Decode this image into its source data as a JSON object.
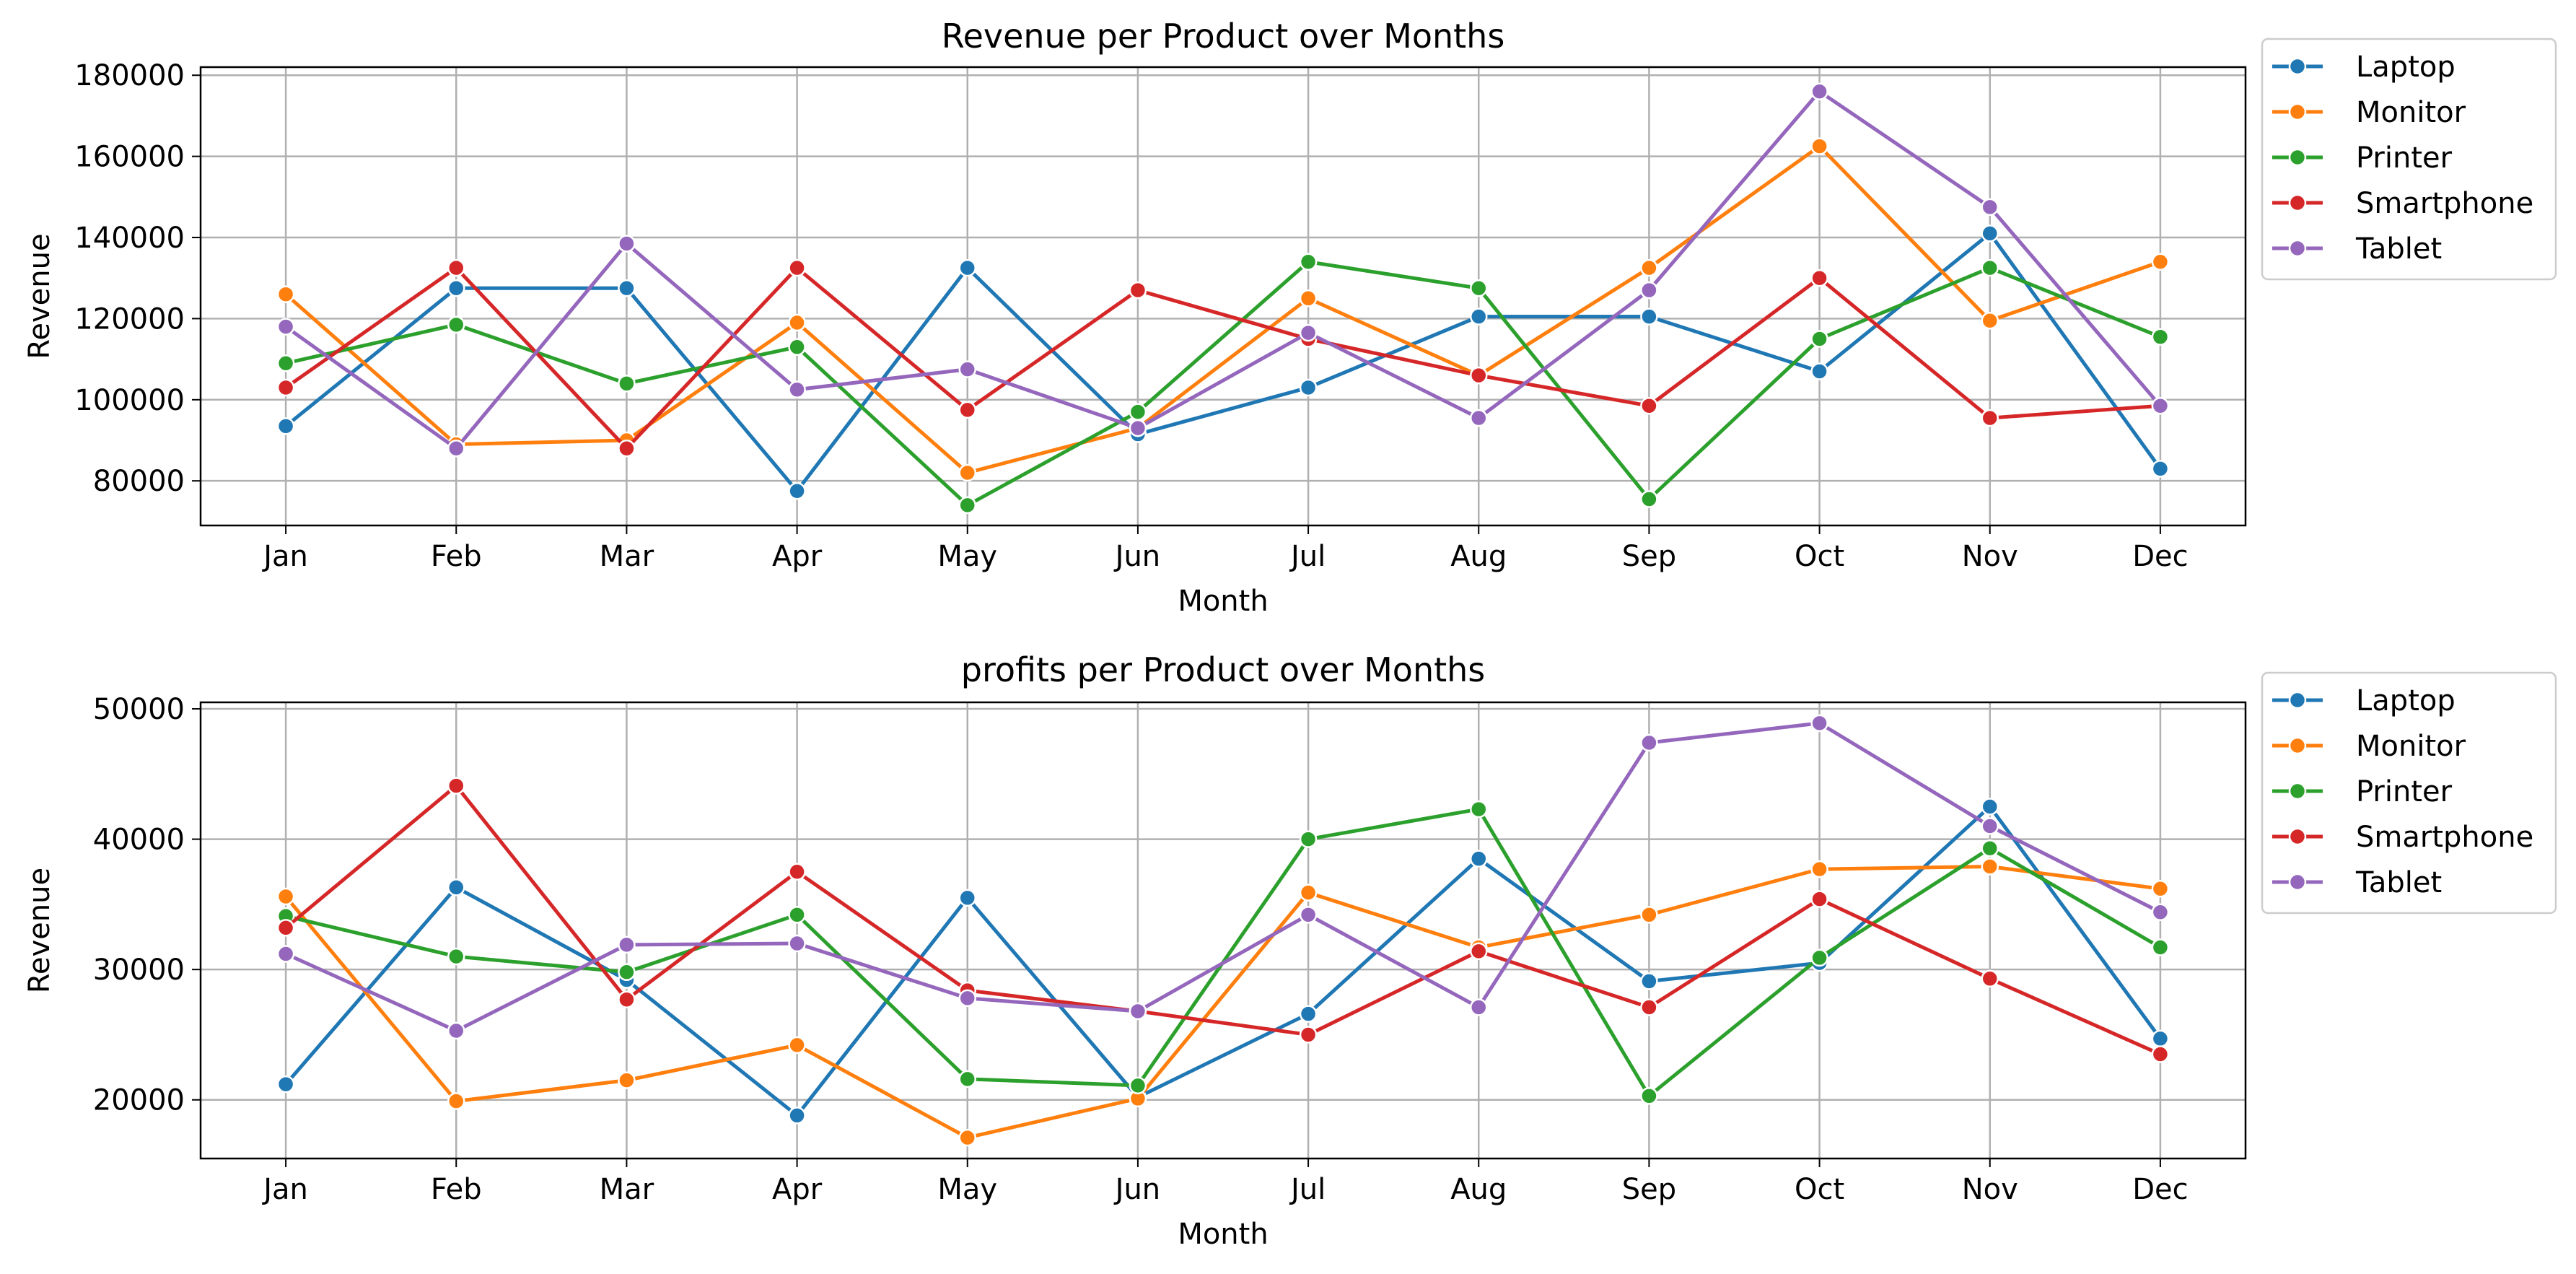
{
  "months": [
    "Jan",
    "Feb",
    "Mar",
    "Apr",
    "May",
    "Jun",
    "Jul",
    "Aug",
    "Sep",
    "Oct",
    "Nov",
    "Dec"
  ],
  "colors": {
    "Laptop": "#1f77b4",
    "Monitor": "#ff7f0e",
    "Printer": "#2ca02c",
    "Smartphone": "#d62728",
    "Tablet": "#9467bd"
  },
  "chart_data": [
    {
      "type": "line",
      "title": "Revenue per Product over Months",
      "xlabel": "Month",
      "ylabel": "Revenue",
      "ylim": [
        69000,
        182000
      ],
      "yticks": [
        80000,
        100000,
        120000,
        140000,
        160000,
        180000
      ],
      "grid": true,
      "legend": "outside-right",
      "categories": [
        "Jan",
        "Feb",
        "Mar",
        "Apr",
        "May",
        "Jun",
        "Jul",
        "Aug",
        "Sep",
        "Oct",
        "Nov",
        "Dec"
      ],
      "series": [
        {
          "name": "Laptop",
          "values": [
            93500,
            127500,
            127500,
            77500,
            132500,
            91500,
            103000,
            120500,
            120500,
            107000,
            141000,
            83000
          ]
        },
        {
          "name": "Monitor",
          "values": [
            126000,
            89000,
            90000,
            119000,
            82000,
            93000,
            125000,
            106000,
            132500,
            162500,
            119500,
            134000
          ]
        },
        {
          "name": "Printer",
          "values": [
            109000,
            118500,
            104000,
            113000,
            74000,
            97000,
            134000,
            127500,
            75500,
            115000,
            132500,
            115500
          ]
        },
        {
          "name": "Smartphone",
          "values": [
            103000,
            132500,
            88000,
            132500,
            97500,
            127000,
            115000,
            106000,
            98500,
            130000,
            95500,
            98500
          ]
        },
        {
          "name": "Tablet",
          "values": [
            118000,
            88000,
            138500,
            102500,
            107500,
            93000,
            116500,
            95500,
            127000,
            176000,
            147500,
            98500
          ]
        }
      ]
    },
    {
      "type": "line",
      "title": "profits per Product over Months",
      "xlabel": "Month",
      "ylabel": "Revenue",
      "ylim": [
        15500,
        50500
      ],
      "yticks": [
        20000,
        30000,
        40000,
        50000
      ],
      "grid": true,
      "legend": "outside-right",
      "categories": [
        "Jan",
        "Feb",
        "Mar",
        "Apr",
        "May",
        "Jun",
        "Jul",
        "Aug",
        "Sep",
        "Oct",
        "Nov",
        "Dec"
      ],
      "series": [
        {
          "name": "Laptop",
          "values": [
            21200,
            36300,
            29200,
            18800,
            35500,
            20200,
            26600,
            38500,
            29100,
            30500,
            42500,
            24700
          ]
        },
        {
          "name": "Monitor",
          "values": [
            35600,
            19900,
            21500,
            24200,
            17100,
            20100,
            35900,
            31700,
            34200,
            37700,
            37900,
            36200
          ]
        },
        {
          "name": "Printer",
          "values": [
            34100,
            31000,
            29800,
            34200,
            21600,
            21100,
            40000,
            42300,
            20300,
            30900,
            39300,
            31700
          ]
        },
        {
          "name": "Smartphone",
          "values": [
            33200,
            44100,
            27700,
            37500,
            28400,
            26800,
            25000,
            31400,
            27100,
            35400,
            29300,
            23500
          ]
        },
        {
          "name": "Tablet",
          "values": [
            31200,
            25300,
            31900,
            32000,
            27800,
            26800,
            34200,
            27100,
            47400,
            48900,
            41000,
            34400
          ]
        }
      ]
    }
  ]
}
